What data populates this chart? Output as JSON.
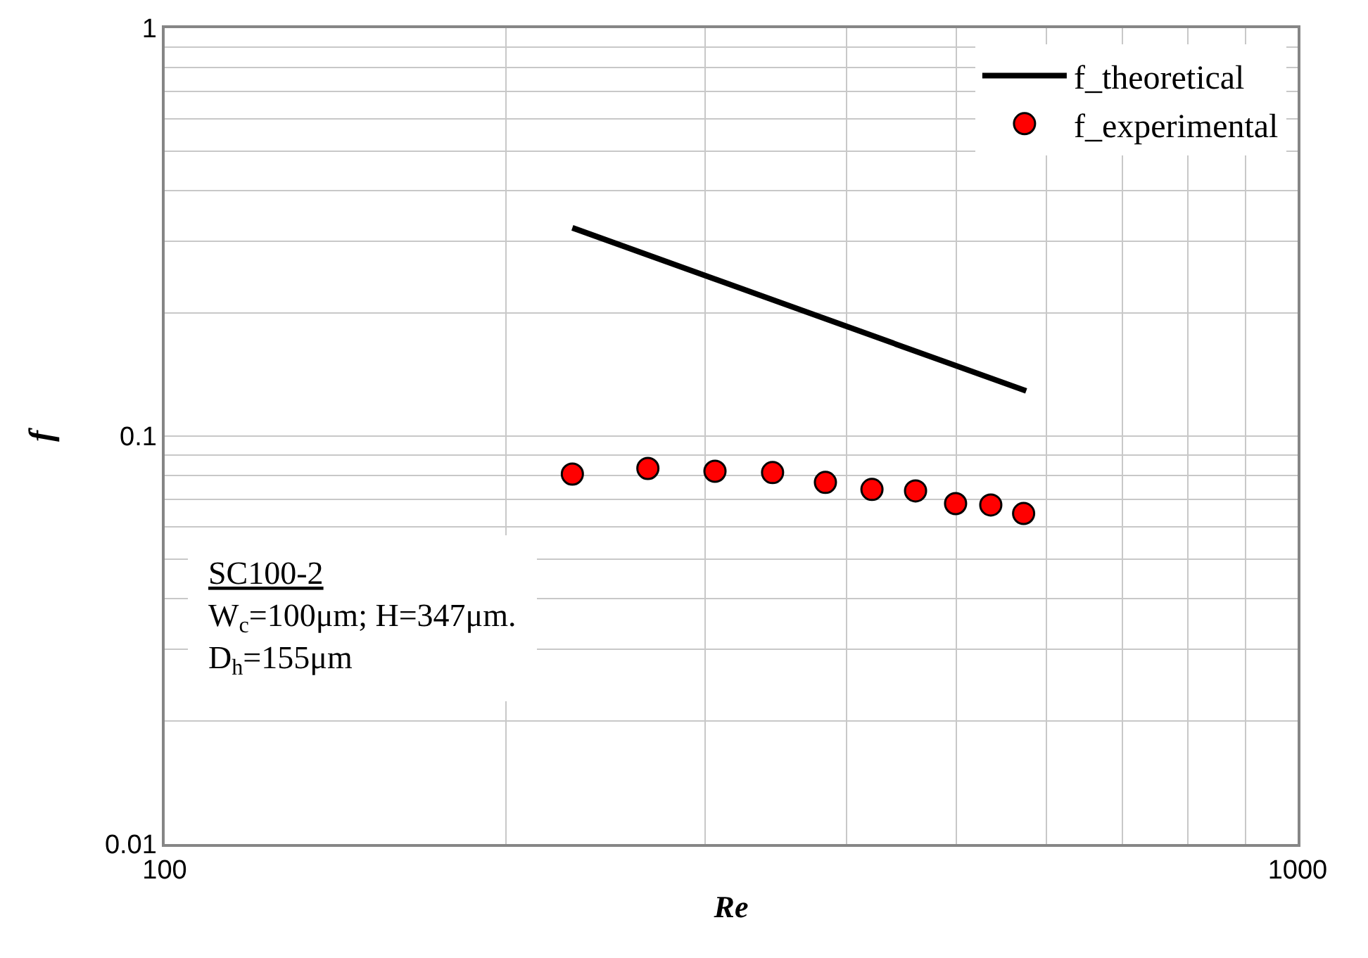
{
  "chart_data": {
    "type": "scatter",
    "xlabel": "Re",
    "ylabel": "f",
    "log": "xy",
    "grid": true,
    "legend": "top right",
    "xlim": [
      100,
      1000
    ],
    "ylim": [
      0.01,
      1
    ],
    "xticks": [
      100,
      {
        "value": 200,
        "label": null
      },
      {
        "value": 300,
        "label": null
      },
      {
        "value": 400,
        "label": null
      },
      {
        "value": 500,
        "label": null
      },
      {
        "value": 600,
        "label": null
      },
      {
        "value": 700,
        "label": null
      },
      {
        "value": 800,
        "label": null
      },
      {
        "value": 900,
        "label": null
      },
      1000
    ],
    "yticks": [
      0.01,
      {
        "value": 0.02,
        "label": null
      },
      {
        "value": 0.03,
        "label": null
      },
      {
        "value": 0.04,
        "label": null
      },
      {
        "value": 0.05,
        "label": null
      },
      {
        "value": 0.06,
        "label": null
      },
      {
        "value": 0.07,
        "label": null
      },
      {
        "value": 0.08,
        "label": null
      },
      {
        "value": 0.09,
        "label": null
      },
      0.1,
      {
        "value": 0.2,
        "label": null
      },
      {
        "value": 0.3,
        "label": null
      },
      {
        "value": 0.4,
        "label": null
      },
      {
        "value": 0.5,
        "label": null
      },
      {
        "value": 0.6,
        "label": null
      },
      {
        "value": 0.7,
        "label": null
      },
      {
        "value": 0.8,
        "label": null
      },
      {
        "value": 0.9,
        "label": null
      },
      1
    ],
    "series": [
      {
        "name": "f_theoretical",
        "type": "line",
        "color": "#000000",
        "marker": "none",
        "line_style": "solid",
        "x": [
          229,
          576
        ],
        "values": [
          0.324,
          0.129
        ]
      },
      {
        "name": "f_experimental",
        "color": "#ff0000",
        "marker": "circle",
        "x": [
          229,
          267,
          306,
          344,
          383,
          421,
          460,
          499,
          536,
          573
        ],
        "values": [
          0.0807,
          0.0833,
          0.082,
          0.0814,
          0.077,
          0.074,
          0.0734,
          0.0683,
          0.0678,
          0.0646
        ]
      }
    ],
    "annotations": [
      "SC100-2",
      "W$_{c}$=100μm; H=347μm.",
      "D$_{h}$=155μm"
    ]
  }
}
